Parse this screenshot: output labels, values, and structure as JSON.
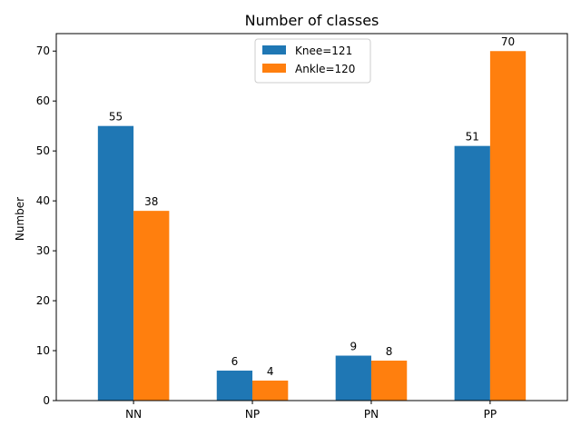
{
  "chart_data": {
    "type": "bar",
    "title": "Number of classes",
    "xlabel": "",
    "ylabel": "Number",
    "categories": [
      "NN",
      "NP",
      "PN",
      "PP"
    ],
    "series": [
      {
        "name": "Knee=121",
        "values": [
          55,
          6,
          9,
          51
        ],
        "color": "#1f77b4"
      },
      {
        "name": "Ankle=120",
        "values": [
          38,
          4,
          8,
          70
        ],
        "color": "#ff7f0e"
      }
    ],
    "ylim": [
      0,
      73.5
    ],
    "yticks": [
      0,
      10,
      20,
      30,
      40,
      50,
      60,
      70
    ],
    "legend": "upper center",
    "grid": false
  }
}
